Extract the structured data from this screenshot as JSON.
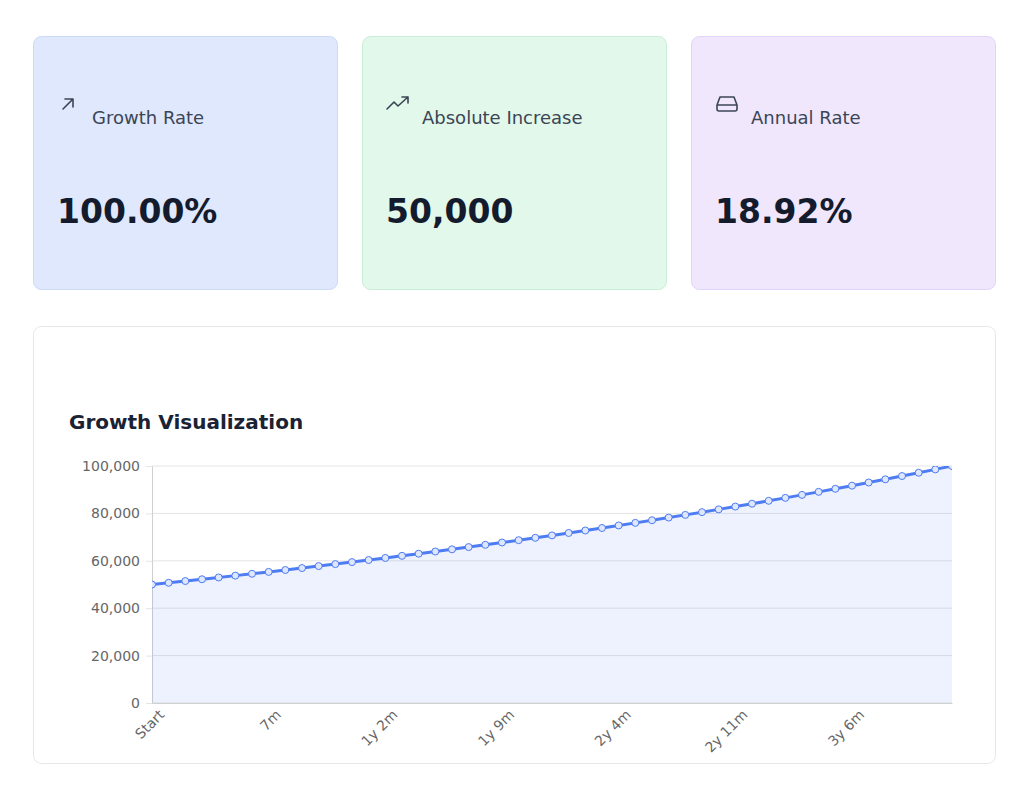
{
  "cards": [
    {
      "label": "Growth Rate",
      "value": "100.00%"
    },
    {
      "label": "Absolute Increase",
      "value": "50,000"
    },
    {
      "label": "Annual Rate",
      "value": "18.92%"
    }
  ],
  "chart_data": {
    "type": "area",
    "title": "Growth Visualization",
    "categories": [
      "Start",
      null,
      null,
      null,
      null,
      null,
      null,
      "7m",
      null,
      null,
      null,
      null,
      null,
      null,
      "1y 2m",
      null,
      null,
      null,
      null,
      null,
      null,
      "1y 9m",
      null,
      null,
      null,
      null,
      null,
      null,
      "2y 4m",
      null,
      null,
      null,
      null,
      null,
      null,
      "2y 11m",
      null,
      null,
      null,
      null,
      null,
      null,
      "3y 6m",
      null,
      null,
      null,
      null,
      null,
      null
    ],
    "values": [
      50000,
      50727,
      51465,
      52214,
      52973,
      53744,
      54525,
      55318,
      56123,
      56939,
      57768,
      58608,
      59460,
      60325,
      61203,
      62093,
      62996,
      63913,
      64842,
      65785,
      66742,
      67713,
      68698,
      69697,
      70711,
      71739,
      72783,
      73842,
      74916,
      76005,
      77111,
      78233,
      79370,
      80525,
      81696,
      82884,
      84090,
      85313,
      86554,
      87813,
      89090,
      90386,
      91700,
      93034,
      94387,
      95760,
      97153,
      98566,
      100000
    ],
    "color": "#4e7cf2",
    "marker": "circle",
    "grid": true,
    "ylim": [
      0,
      100000
    ],
    "yticks": [
      0,
      {
        "value": 20000,
        "label": "20,000"
      },
      {
        "value": 40000,
        "label": "40,000"
      },
      {
        "value": 60000,
        "label": "60,000"
      },
      {
        "value": 80000,
        "label": "80,000"
      },
      {
        "value": 100000,
        "label": "100,000"
      }
    ]
  }
}
